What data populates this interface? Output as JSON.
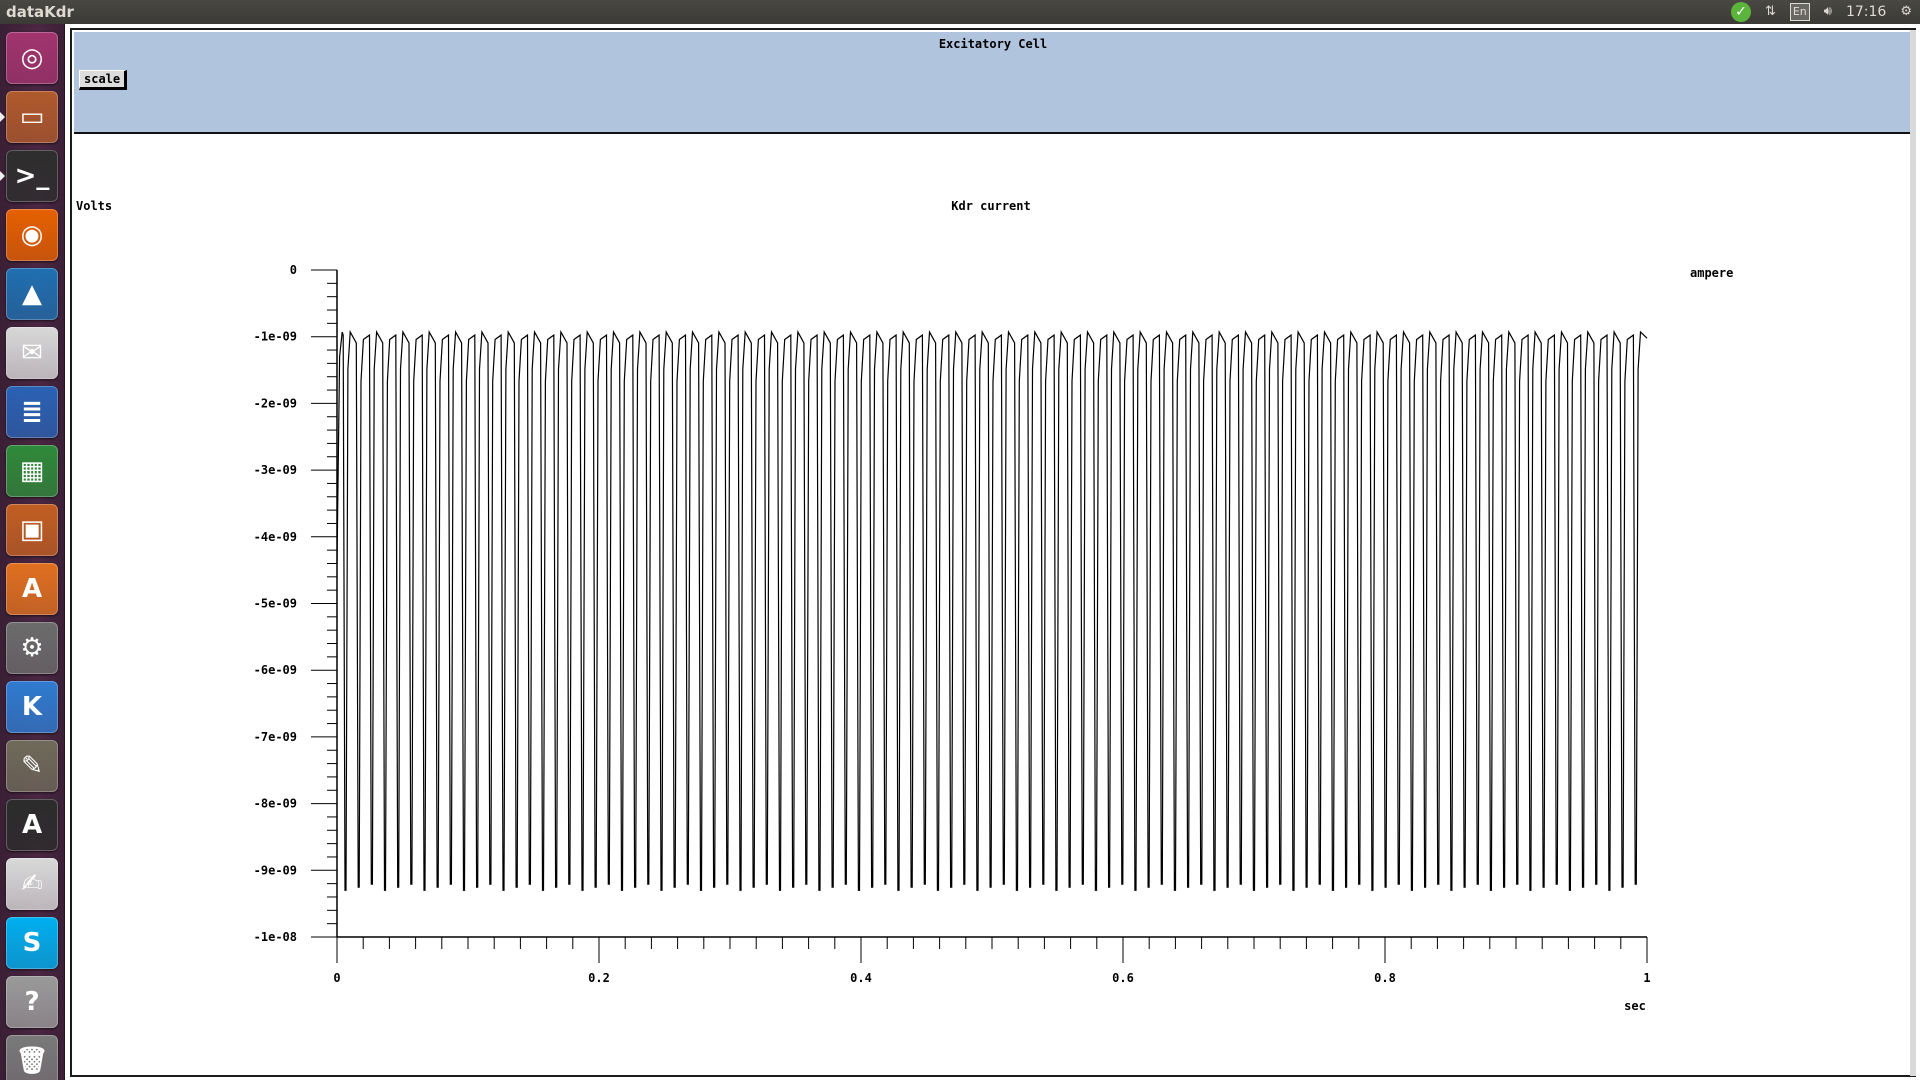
{
  "topbar": {
    "title": "dataKdr",
    "lang": "En",
    "clock": "17:16",
    "icons": [
      "update-check-icon",
      "network-icon",
      "keyboard-lang-icon",
      "volume-icon",
      "gear-icon"
    ]
  },
  "launcher": {
    "items": [
      {
        "name": "ubuntu-dash",
        "glyph": "◎",
        "color": "#a2346e"
      },
      {
        "name": "files",
        "glyph": "▭",
        "color": "#b05a2c"
      },
      {
        "name": "terminal",
        "glyph": ">_",
        "color": "#2e2e2e"
      },
      {
        "name": "firefox",
        "glyph": "◉",
        "color": "#e66000"
      },
      {
        "name": "matlab",
        "glyph": "▲",
        "color": "#1f6fb0"
      },
      {
        "name": "mail",
        "glyph": "✉",
        "color": "#d8d8d8"
      },
      {
        "name": "writer",
        "glyph": "≣",
        "color": "#2a62b4"
      },
      {
        "name": "calc",
        "glyph": "▦",
        "color": "#2f8a3a"
      },
      {
        "name": "impress",
        "glyph": "▣",
        "color": "#c25f22"
      },
      {
        "name": "software-center",
        "glyph": "A",
        "color": "#e07020"
      },
      {
        "name": "system-settings",
        "glyph": "⚙",
        "color": "#6c6c6c"
      },
      {
        "name": "kile",
        "glyph": "K",
        "color": "#2f7bd0"
      },
      {
        "name": "gimp",
        "glyph": "✎",
        "color": "#6f6a5a"
      },
      {
        "name": "software-updater",
        "glyph": "A",
        "color": "#2c2c2c"
      },
      {
        "name": "text-editor",
        "glyph": "✍",
        "color": "#d9d9d9"
      },
      {
        "name": "skype",
        "glyph": "S",
        "color": "#00aff0"
      },
      {
        "name": "help",
        "glyph": "?",
        "color": "#9a9a9a"
      },
      {
        "name": "trash",
        "glyph": "🗑",
        "color": "#7a7a7a"
      }
    ]
  },
  "form": {
    "title": "Excitatory Cell",
    "scale_label": "scale"
  },
  "chart_data": {
    "type": "line",
    "title": "Kdr current",
    "ylabel": "Volts",
    "ylabel_right": "ampere",
    "xlabel": "sec",
    "xlim": [
      0,
      1
    ],
    "ylim": [
      -1e-08,
      0
    ],
    "x_ticks": [
      0,
      0.2,
      0.4,
      0.6,
      0.8,
      1
    ],
    "x_tick_labels": [
      "0",
      "0.2",
      "0.4",
      "0.6",
      "0.8",
      "1"
    ],
    "y_ticks": [
      0,
      -1e-09,
      -2e-09,
      -3e-09,
      -4e-09,
      -5e-09,
      -6e-09,
      -7e-09,
      -8e-09,
      -9e-09,
      -1e-08
    ],
    "y_tick_labels": [
      "0",
      "-1e-09",
      "-2e-09",
      "-3e-09",
      "-4e-09",
      "-5e-09",
      "-6e-09",
      "-7e-09",
      "-8e-09",
      "-9e-09",
      "-1e-08"
    ],
    "series": [
      {
        "period": 0.01005,
        "first_spike": 0.0065,
        "peak_value": -9.3e-09,
        "rest_value": -9.3e-10,
        "x_start": 0,
        "x_end": 1
      }
    ],
    "grid": false
  }
}
